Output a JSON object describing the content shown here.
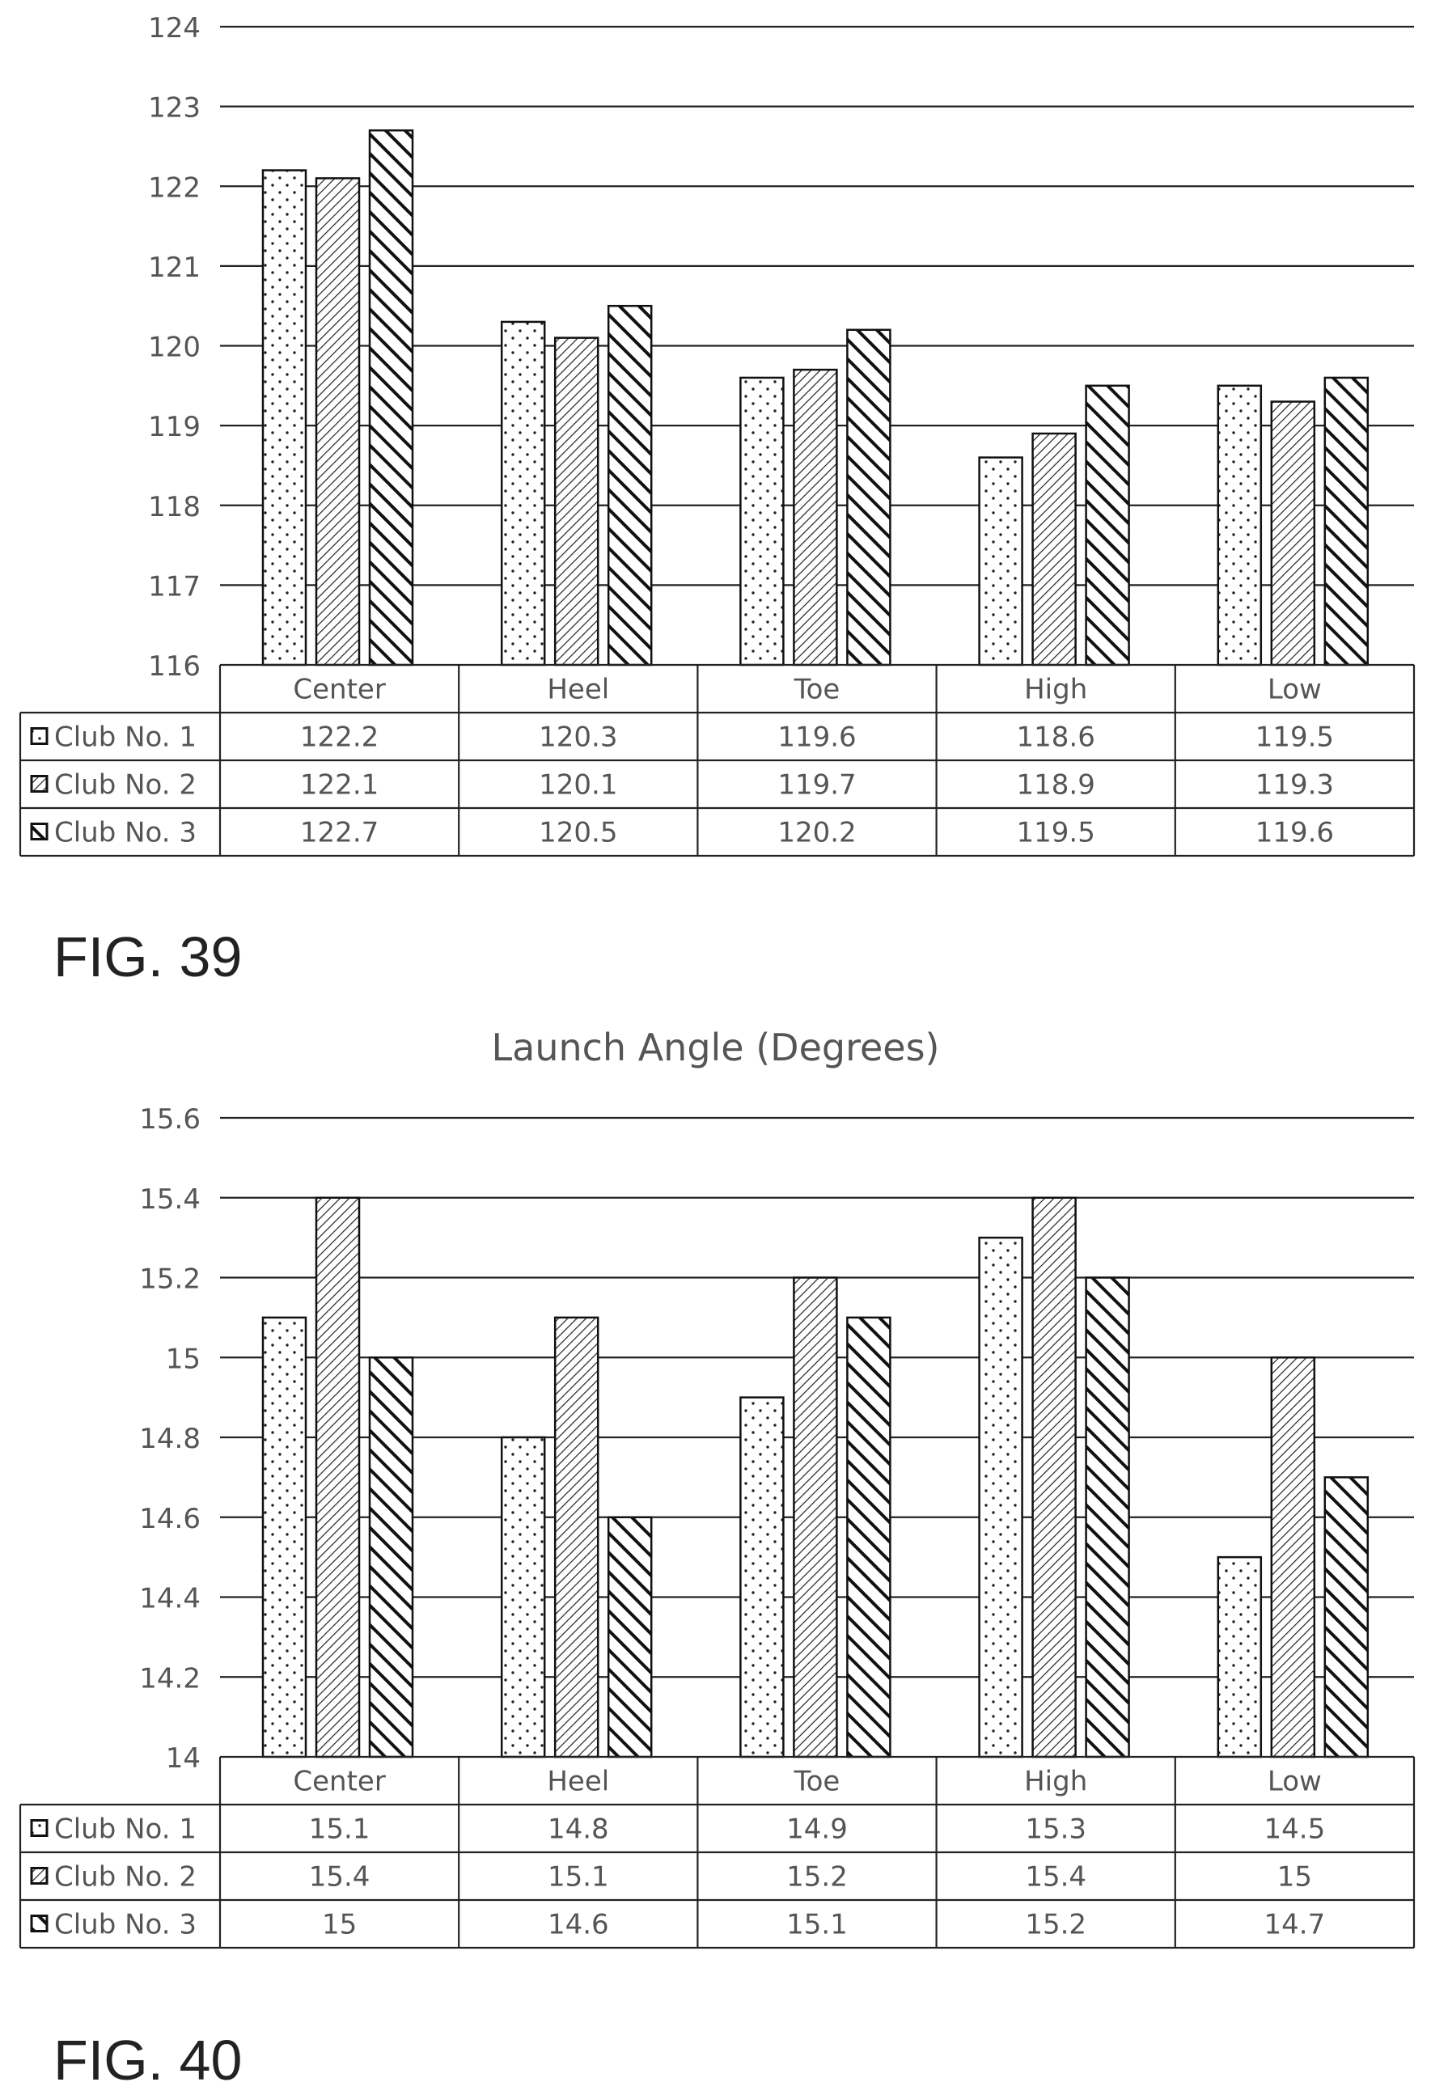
{
  "figures": [
    {
      "caption": "FIG. 39",
      "chart_data": {
        "type": "bar",
        "title": "",
        "categories": [
          "Center",
          "Heel",
          "Toe",
          "High",
          "Low"
        ],
        "series": [
          {
            "name": "Club No. 1",
            "pattern": "dots",
            "values": [
              122.2,
              120.3,
              119.6,
              118.6,
              119.5
            ]
          },
          {
            "name": "Club No. 2",
            "pattern": "fine-hatch",
            "values": [
              122.1,
              120.1,
              119.7,
              118.9,
              119.3
            ]
          },
          {
            "name": "Club No. 3",
            "pattern": "bold-hatch",
            "values": [
              122.7,
              120.5,
              120.2,
              119.5,
              119.6
            ]
          }
        ],
        "ylim": [
          116,
          124
        ],
        "yticks": [
          "124",
          "123",
          "122",
          "121",
          "120",
          "119",
          "118",
          "117",
          "116"
        ],
        "grid": true,
        "legend": "data-table"
      }
    },
    {
      "caption": "FIG. 40",
      "chart_data": {
        "type": "bar",
        "title": "Launch Angle (Degrees)",
        "categories": [
          "Center",
          "Heel",
          "Toe",
          "High",
          "Low"
        ],
        "series": [
          {
            "name": "Club No. 1",
            "pattern": "dots",
            "values": [
              15.1,
              14.8,
              14.9,
              15.3,
              14.5
            ]
          },
          {
            "name": "Club No. 2",
            "pattern": "fine-hatch",
            "values": [
              15.4,
              15.1,
              15.2,
              15.4,
              15.0
            ]
          },
          {
            "name": "Club No. 3",
            "pattern": "bold-hatch",
            "values": [
              15.0,
              14.6,
              15.1,
              15.2,
              14.7
            ]
          }
        ],
        "ylim": [
          14,
          15.6
        ],
        "yticks": [
          "15.6",
          "15.4",
          "15.2",
          "15",
          "14.8",
          "14.6",
          "14.4",
          "14.2",
          "14"
        ],
        "table_values": [
          [
            "15.1",
            "14.8",
            "14.9",
            "15.3",
            "14.5"
          ],
          [
            "15.4",
            "15.1",
            "15.2",
            "15.4",
            "15"
          ],
          [
            "15",
            "14.6",
            "15.1",
            "15.2",
            "14.7"
          ]
        ],
        "grid": true,
        "legend": "data-table"
      }
    }
  ]
}
